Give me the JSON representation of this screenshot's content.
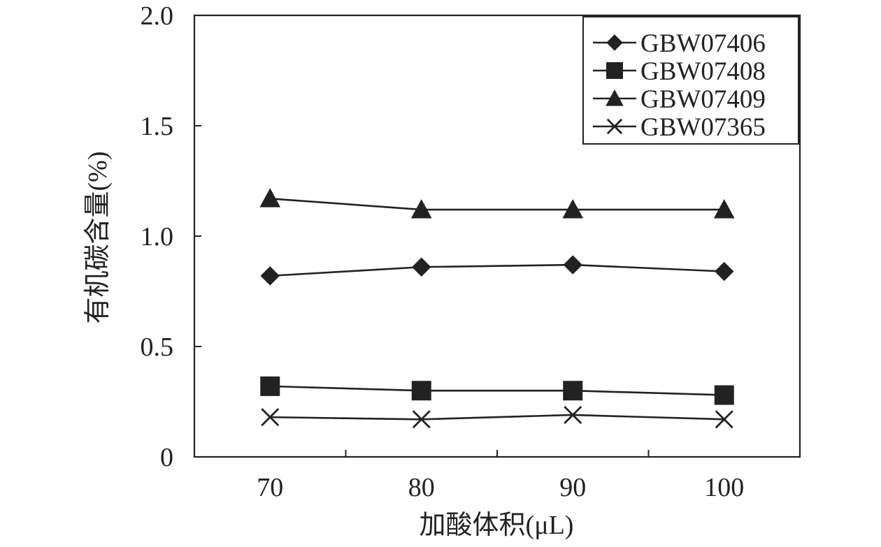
{
  "colors": {
    "axis": "#222222",
    "series": "#222222",
    "background": "#ffffff"
  },
  "chart_data": {
    "type": "line",
    "title": "",
    "xlabel": "加酸体积(μL)",
    "ylabel": "有机碳含量(%)",
    "x": [
      70,
      80,
      90,
      100
    ],
    "x_tick_labels": [
      "70",
      "80",
      "90",
      "100"
    ],
    "xlim": [
      65,
      105
    ],
    "ylim": [
      0,
      2.0
    ],
    "y_ticks": [
      0,
      0.5,
      1.0,
      1.5,
      2.0
    ],
    "y_tick_labels": [
      "0",
      "0.5",
      "1.0",
      "1.5",
      "2.0"
    ],
    "grid": false,
    "legend_position": "top-right",
    "series": [
      {
        "name": "GBW07406",
        "marker": "diamond",
        "values": [
          0.82,
          0.86,
          0.87,
          0.84
        ]
      },
      {
        "name": "GBW07408",
        "marker": "square",
        "values": [
          0.32,
          0.3,
          0.3,
          0.28
        ]
      },
      {
        "name": "GBW07409",
        "marker": "triangle",
        "values": [
          1.17,
          1.12,
          1.12,
          1.12
        ]
      },
      {
        "name": "GBW07365",
        "marker": "cross",
        "values": [
          0.18,
          0.17,
          0.19,
          0.17
        ]
      }
    ]
  }
}
